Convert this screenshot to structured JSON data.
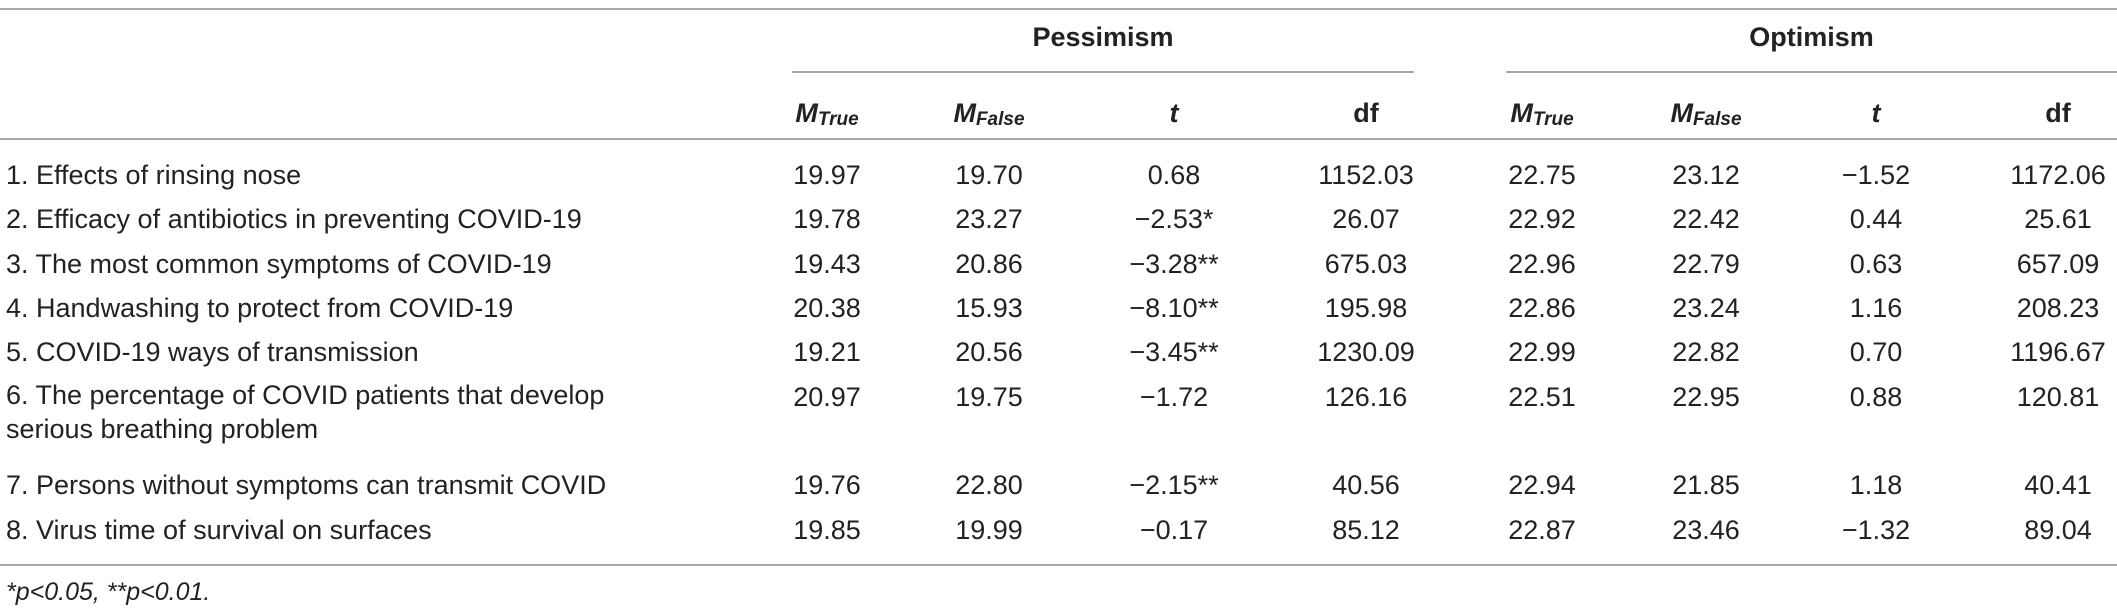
{
  "groups": {
    "pessimism": "Pessimism",
    "optimism": "Optimism"
  },
  "headers": {
    "m_true": {
      "main": "M",
      "sub": "True"
    },
    "m_false": {
      "main": "M",
      "sub": "False"
    },
    "t": "t",
    "df": "df"
  },
  "rows": [
    {
      "label": "1. Effects of rinsing nose",
      "p": [
        "19.97",
        "19.70",
        "0.68",
        "1152.03"
      ],
      "o": [
        "22.75",
        "23.12",
        "−1.52",
        "1172.06"
      ]
    },
    {
      "label": "2. Efficacy of antibiotics in preventing COVID-19",
      "p": [
        "19.78",
        "23.27",
        "−2.53*",
        "26.07"
      ],
      "o": [
        "22.92",
        "22.42",
        "0.44",
        "25.61"
      ]
    },
    {
      "label": "3. The most common symptoms of COVID-19",
      "p": [
        "19.43",
        "20.86",
        "−3.28**",
        "675.03"
      ],
      "o": [
        "22.96",
        "22.79",
        "0.63",
        "657.09"
      ]
    },
    {
      "label": "4. Handwashing to protect from COVID-19",
      "p": [
        "20.38",
        "15.93",
        "−8.10**",
        "195.98"
      ],
      "o": [
        "22.86",
        "23.24",
        "1.16",
        "208.23"
      ]
    },
    {
      "label": "5. COVID-19 ways of transmission",
      "p": [
        "19.21",
        "20.56",
        "−3.45**",
        "1230.09"
      ],
      "o": [
        "22.99",
        "22.82",
        "0.70",
        "1196.67"
      ]
    },
    {
      "label": "6. The percentage of COVID patients that develop serious breathing problem",
      "p": [
        "20.97",
        "19.75",
        "−1.72",
        "126.16"
      ],
      "o": [
        "22.51",
        "22.95",
        "0.88",
        "120.81"
      ]
    },
    {
      "label": "7. Persons without symptoms can transmit COVID",
      "p": [
        "19.76",
        "22.80",
        "−2.15**",
        "40.56"
      ],
      "o": [
        "22.94",
        "21.85",
        "1.18",
        "40.41"
      ]
    },
    {
      "label": "8. Virus time of survival on surfaces",
      "p": [
        "19.85",
        "19.99",
        "−0.17",
        "85.12"
      ],
      "o": [
        "22.87",
        "23.46",
        "−1.32",
        "89.04"
      ]
    }
  ],
  "note": "*p<0.05, **p<0.01."
}
